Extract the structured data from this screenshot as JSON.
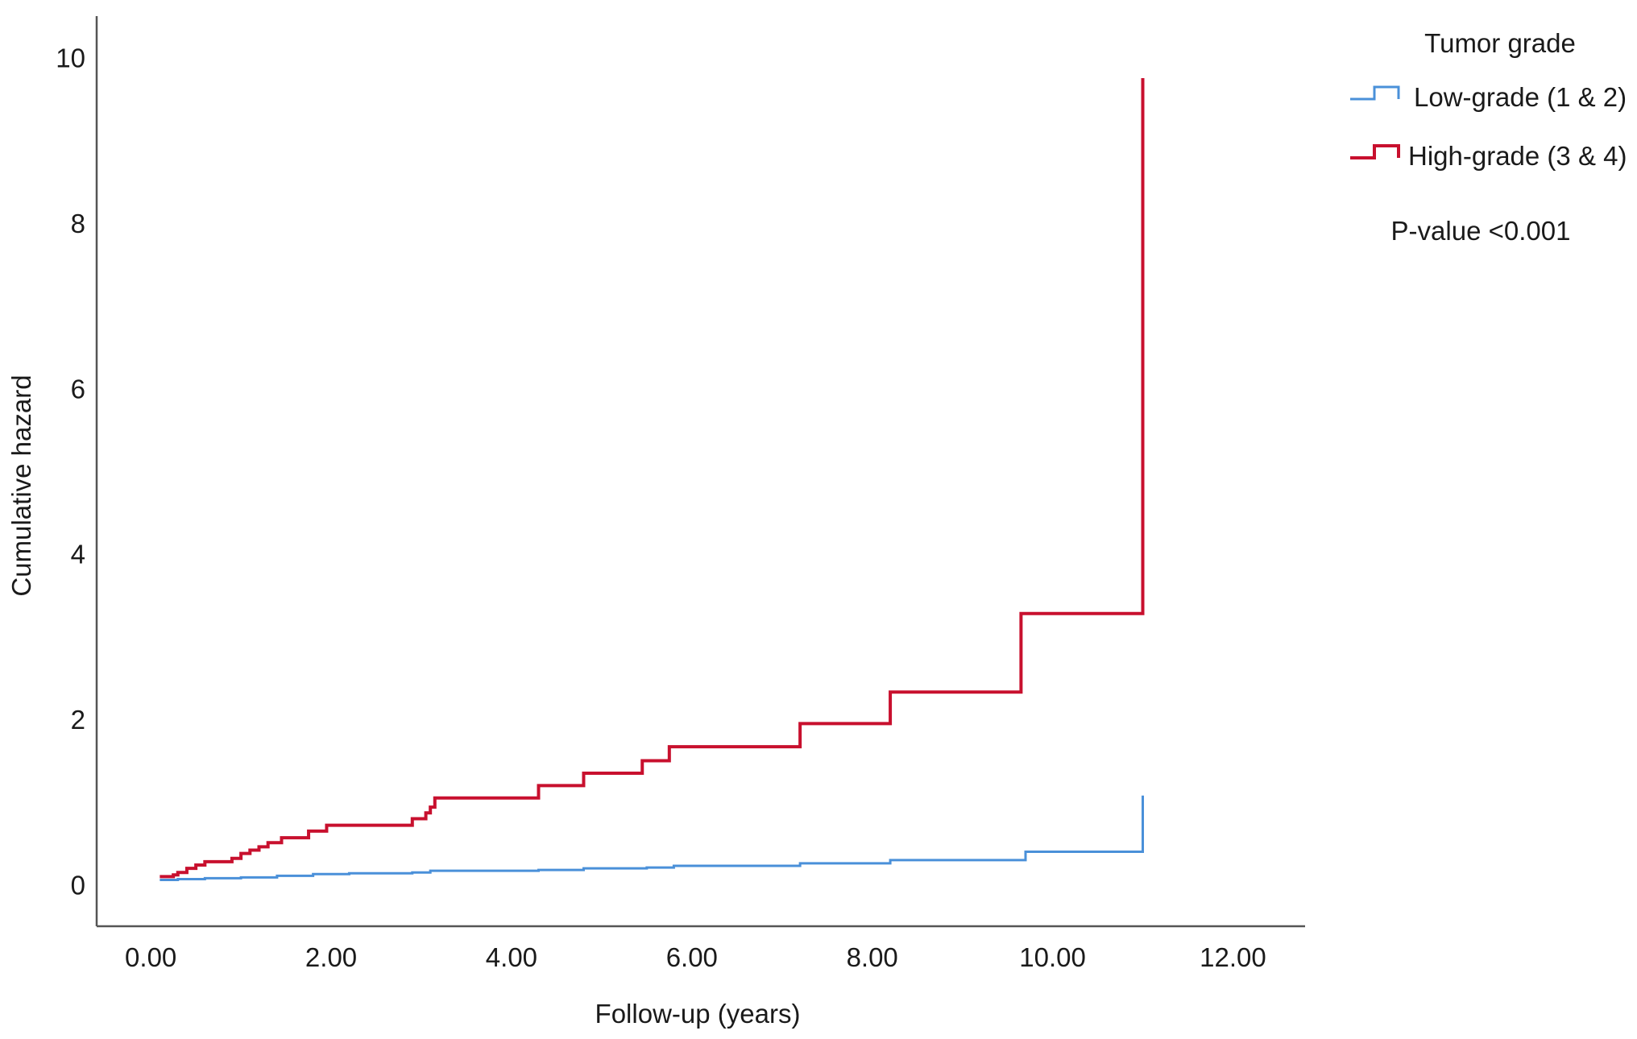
{
  "chart_data": {
    "type": "line",
    "step": true,
    "xlabel": "Follow-up (years)",
    "ylabel": "Cumulative hazard",
    "xlim": [
      -0.6,
      12.8
    ],
    "ylim": [
      -0.5,
      10.5
    ],
    "x_ticks": [
      0,
      2,
      4,
      6,
      8,
      10,
      12
    ],
    "x_tick_labels": [
      "0.00",
      "2.00",
      "4.00",
      "6.00",
      "8.00",
      "10.00",
      "12.00"
    ],
    "y_ticks": [
      0,
      2,
      4,
      6,
      8,
      10
    ],
    "y_tick_labels": [
      "0",
      "2",
      "4",
      "6",
      "8",
      "10"
    ],
    "grid": false,
    "legend": {
      "title": "Tumor grade",
      "placement": "top-right",
      "note": "P-value <0.001"
    },
    "series": [
      {
        "name": "Low-grade (1 & 2)",
        "color": "#4a90d9",
        "x": [
          0.1,
          0.3,
          0.6,
          1.0,
          1.4,
          1.8,
          2.2,
          2.9,
          3.1,
          4.3,
          4.8,
          5.5,
          5.8,
          7.2,
          8.2,
          9.7,
          11.0,
          11.0
        ],
        "y": [
          0.06,
          0.07,
          0.08,
          0.09,
          0.11,
          0.13,
          0.14,
          0.15,
          0.17,
          0.18,
          0.2,
          0.21,
          0.23,
          0.26,
          0.3,
          0.4,
          0.4,
          1.08
        ]
      },
      {
        "name": "High-grade (3 & 4)",
        "color": "#c8102e",
        "x": [
          0.1,
          0.25,
          0.3,
          0.4,
          0.5,
          0.6,
          0.9,
          1.0,
          1.1,
          1.2,
          1.3,
          1.45,
          1.75,
          1.95,
          2.9,
          3.05,
          3.1,
          3.15,
          4.3,
          4.8,
          5.45,
          5.75,
          7.2,
          8.2,
          9.65,
          11.0,
          11.0
        ],
        "y": [
          0.1,
          0.12,
          0.15,
          0.2,
          0.24,
          0.28,
          0.32,
          0.38,
          0.42,
          0.46,
          0.51,
          0.57,
          0.65,
          0.72,
          0.8,
          0.87,
          0.94,
          1.05,
          1.2,
          1.35,
          1.5,
          1.67,
          1.95,
          2.33,
          3.28,
          3.28,
          9.75
        ]
      }
    ]
  }
}
